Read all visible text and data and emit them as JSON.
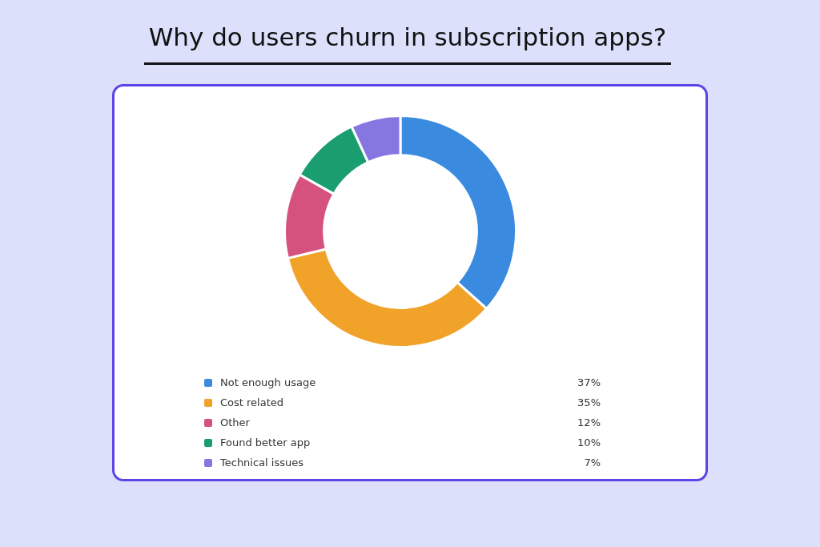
{
  "chart_data": {
    "type": "donut",
    "title": "Why do users churn in subscription apps?",
    "categories": [
      "Not enough usage",
      "Cost related",
      "Other",
      "Found better app",
      "Technical issues"
    ],
    "values": [
      37,
      35,
      12,
      10,
      7
    ],
    "colors": [
      "#3a8bdf",
      "#f0a229",
      "#d6527e",
      "#1b9e6f",
      "#8676e0"
    ],
    "value_labels": [
      "37%",
      "35%",
      "12%",
      "10%",
      "7%"
    ],
    "legend": "bottom"
  }
}
